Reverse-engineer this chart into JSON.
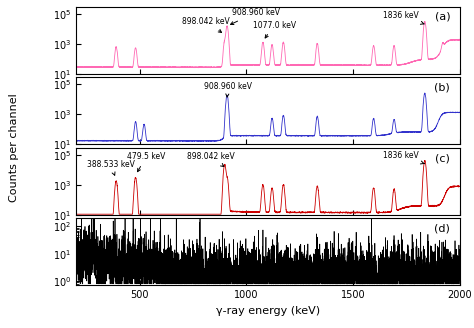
{
  "title": "",
  "xlabel": "γ-ray energy (keV)",
  "ylabel": "Counts per channel",
  "xlim": [
    200,
    2000
  ],
  "panels": [
    "(a)",
    "(b)",
    "(c)",
    "(d)"
  ],
  "colors": [
    "#FF69B4",
    "#3333CC",
    "#CC0000",
    "#000000"
  ],
  "ylim_abc": [
    10,
    300000.0
  ],
  "ylim_d": [
    0.7,
    200
  ],
  "seed": 42
}
